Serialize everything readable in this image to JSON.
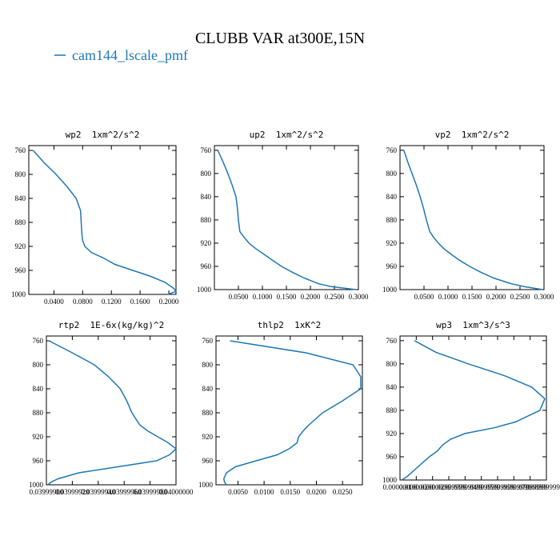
{
  "title": "CLUBB VAR at300E,15N",
  "chart_data": [
    {
      "type": "line",
      "title": "wp2  1xm^2/s^2",
      "y": [
        760,
        780,
        800,
        820,
        840,
        860,
        880,
        900,
        910,
        920,
        930,
        940,
        950,
        960,
        970,
        980,
        990,
        995,
        1000
      ],
      "series": [
        {
          "name": "cam144_lscale_pmf",
          "color": "#1f77b4",
          "values": [
            0.011,
            0.026,
            0.043,
            0.058,
            0.071,
            0.077,
            0.078,
            0.079,
            0.08,
            0.083,
            0.092,
            0.11,
            0.125,
            0.15,
            0.175,
            0.195,
            0.207,
            0.21,
            0.198
          ]
        }
      ],
      "xlim": [
        0.005,
        0.21
      ],
      "xticks": [
        {
          "value": 0.04,
          "label": "0.0400"
        },
        {
          "value": 0.08,
          "label": "0.0800"
        },
        {
          "value": 0.12,
          "label": "0.1200"
        },
        {
          "value": 0.16,
          "label": "0.1600"
        },
        {
          "value": 0.2,
          "label": "0.2000"
        }
      ],
      "ylim": [
        1000,
        752
      ],
      "yticks": [
        760,
        800,
        840,
        880,
        920,
        960,
        1000
      ]
    },
    {
      "type": "line",
      "title": "up2  1xm^2/s^2",
      "y": [
        760,
        780,
        800,
        820,
        840,
        860,
        880,
        900,
        910,
        920,
        930,
        940,
        950,
        960,
        970,
        980,
        990,
        995,
        1000
      ],
      "series": [
        {
          "name": "cam144_lscale_pmf",
          "color": "#1f77b4",
          "values": [
            0.007,
            0.018,
            0.028,
            0.037,
            0.045,
            0.048,
            0.05,
            0.053,
            0.062,
            0.072,
            0.087,
            0.105,
            0.122,
            0.14,
            0.162,
            0.187,
            0.217,
            0.245,
            0.295
          ]
        }
      ],
      "xlim": [
        0,
        0.3
      ],
      "xticks": [
        {
          "value": 0.05,
          "label": "0.0500"
        },
        {
          "value": 0.1,
          "label": "0.1000"
        },
        {
          "value": 0.15,
          "label": "0.1500"
        },
        {
          "value": 0.2,
          "label": "0.2000"
        },
        {
          "value": 0.25,
          "label": "0.2500"
        },
        {
          "value": 0.3,
          "label": "0.3000"
        }
      ],
      "ylim": [
        1000,
        752
      ],
      "yticks": [
        760,
        800,
        840,
        880,
        920,
        960,
        1000
      ]
    },
    {
      "type": "line",
      "title": "vp2  1xm^2/s^2",
      "y": [
        760,
        780,
        800,
        820,
        840,
        860,
        880,
        900,
        910,
        920,
        930,
        940,
        950,
        960,
        970,
        980,
        990,
        995,
        1000
      ],
      "series": [
        {
          "name": "cam144_lscale_pmf",
          "color": "#1f77b4",
          "values": [
            0.008,
            0.016,
            0.025,
            0.034,
            0.042,
            0.049,
            0.055,
            0.062,
            0.07,
            0.08,
            0.092,
            0.108,
            0.125,
            0.145,
            0.168,
            0.195,
            0.232,
            0.26,
            0.297
          ]
        }
      ],
      "xlim": [
        0,
        0.3
      ],
      "xticks": [
        {
          "value": 0.05,
          "label": "0.0500"
        },
        {
          "value": 0.1,
          "label": "0.1000"
        },
        {
          "value": 0.15,
          "label": "0.1500"
        },
        {
          "value": 0.2,
          "label": "0.2000"
        },
        {
          "value": 0.25,
          "label": "0.2500"
        },
        {
          "value": 0.3,
          "label": "0.3000"
        }
      ],
      "ylim": [
        1000,
        752
      ],
      "yticks": [
        760,
        800,
        840,
        880,
        920,
        960,
        1000
      ]
    },
    {
      "type": "line",
      "title": "rtp2  1E-6x(kg/kg)^2",
      "y": [
        760,
        780,
        800,
        820,
        840,
        860,
        880,
        900,
        910,
        920,
        930,
        940,
        950,
        960,
        970,
        980,
        990,
        995,
        1000
      ],
      "series": [
        {
          "name": "cam144_lscale_pmf",
          "color": "#1f77b4",
          "values": [
            0.03999902,
            0.0399992,
            0.03999937,
            0.03999948,
            0.03999957,
            0.03999962,
            0.03999966,
            0.03999972,
            0.03999978,
            0.03999986,
            0.03999994,
            0.04,
            0.03999995,
            0.03999985,
            0.03999955,
            0.03999925,
            0.03999909,
            0.03999904,
            0.03999901
          ]
        }
      ],
      "xlim": [
        0.039999,
        0.04
      ],
      "xticks": [
        {
          "value": 0.039999,
          "label": "0.03999900"
        },
        {
          "value": 0.0399992,
          "label": "0.03999920"
        },
        {
          "value": 0.0399994,
          "label": "0.03999940"
        },
        {
          "value": 0.0399996,
          "label": "0.03999960"
        },
        {
          "value": 0.0399998,
          "label": "0.03999980"
        },
        {
          "value": 0.04,
          "label": "0.04000000"
        }
      ],
      "ylim": [
        1000,
        752
      ],
      "yticks": [
        760,
        800,
        840,
        880,
        920,
        960,
        1000
      ]
    },
    {
      "type": "line",
      "title": "thlp2  1xK^2",
      "y": [
        760,
        780,
        800,
        820,
        840,
        860,
        880,
        900,
        910,
        920,
        930,
        940,
        950,
        960,
        970,
        980,
        990,
        995,
        1000
      ],
      "series": [
        {
          "name": "cam144_lscale_pmf",
          "color": "#1f77b4",
          "values": [
            0.0035,
            0.018,
            0.027,
            0.0285,
            0.0285,
            0.025,
            0.0212,
            0.0186,
            0.0175,
            0.0166,
            0.0163,
            0.0148,
            0.0125,
            0.0085,
            0.0045,
            0.0028,
            0.0023,
            0.0024,
            0.0028
          ]
        }
      ],
      "xlim": [
        0.0008,
        0.0288
      ],
      "xticks": [
        {
          "value": 0.005,
          "label": "0.0050"
        },
        {
          "value": 0.01,
          "label": "0.0100"
        },
        {
          "value": 0.015,
          "label": "0.0150"
        },
        {
          "value": 0.02,
          "label": "0.0200"
        },
        {
          "value": 0.025,
          "label": "0.0250"
        }
      ],
      "ylim": [
        1000,
        752
      ],
      "yticks": [
        760,
        800,
        840,
        880,
        920,
        960,
        1000
      ]
    },
    {
      "type": "line",
      "title": "wp3  1xm^3/s^3",
      "y": [
        760,
        780,
        800,
        820,
        840,
        860,
        880,
        900,
        910,
        920,
        930,
        940,
        950,
        960,
        970,
        980,
        990,
        995,
        1000
      ],
      "series": [
        {
          "name": "cam144_lscale_pmf",
          "color": "#1f77b4",
          "values": [
            0.0089,
            0.022,
            0.042,
            0.064,
            0.081,
            0.089,
            0.086,
            0.071,
            0.058,
            0.04,
            0.031,
            0.026,
            0.023,
            0.018,
            0.014,
            0.01,
            0.006,
            0.004,
            0.001
          ]
        }
      ],
      "xlim": [
        0,
        0.09
      ],
      "xticks": [
        {
          "value": 0,
          "label": "0.00000000"
        },
        {
          "value": 0.01,
          "label": "0.01000000"
        },
        {
          "value": 0.02,
          "label": "0.02000000"
        },
        {
          "value": 0.03,
          "label": "0.02999999"
        },
        {
          "value": 0.04,
          "label": "0.03999999"
        },
        {
          "value": 0.05,
          "label": "0.04999999"
        },
        {
          "value": 0.06,
          "label": "0.05999999"
        },
        {
          "value": 0.07,
          "label": "0.06999999"
        },
        {
          "value": 0.08,
          "label": "0.07999999"
        },
        {
          "value": 0.09,
          "label": "0.0899999994"
        }
      ],
      "ylim": [
        1000,
        752
      ],
      "yticks": [
        760,
        800,
        840,
        880,
        920,
        960,
        1000
      ]
    }
  ]
}
